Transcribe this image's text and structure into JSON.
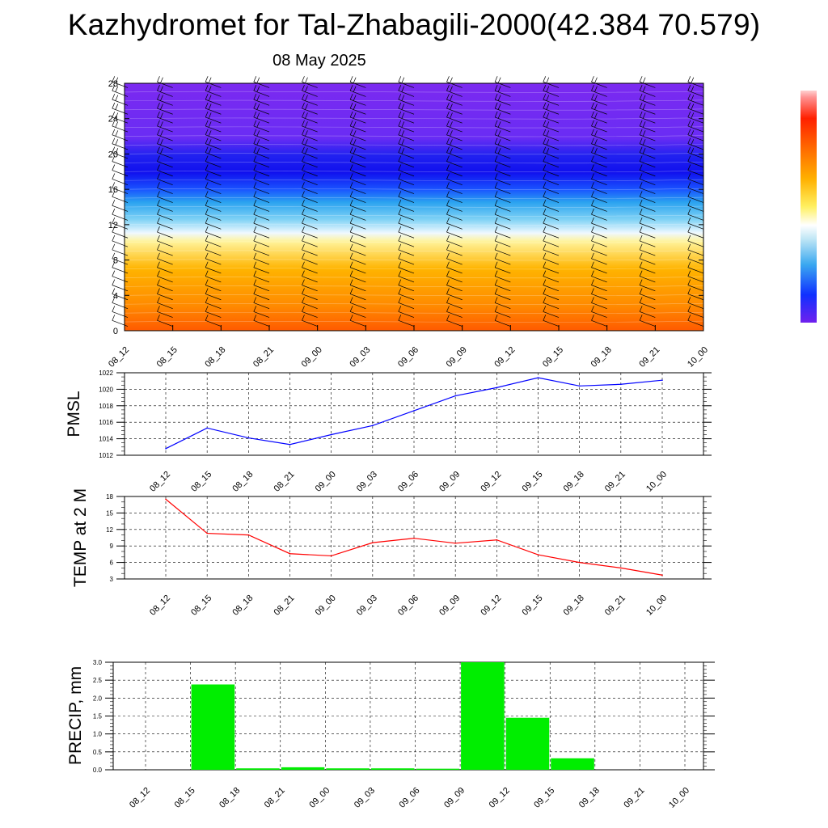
{
  "title": "Kazhydromet for Tal-Zhabagili-2000(42.384 70.579)",
  "subtitle": "08 May 2025",
  "colors": {
    "pmsl_line": "#0000ff",
    "temp_line": "#ff0000",
    "precip_bar": "#00ee00",
    "barb": "#000000"
  },
  "chart_data": [
    {
      "type": "heatmap",
      "title": "Kazhydromet for Tal-Zhabagili-2000(42.384 70.579)",
      "x_ticks": [
        "08_12",
        "08_15",
        "08_18",
        "08_21",
        "09_00",
        "09_03",
        "09_06",
        "09_09",
        "09_12",
        "09_15",
        "09_18",
        "09_21",
        "10_00"
      ],
      "y_ticks": [
        "0",
        "4",
        "8",
        "12",
        "16",
        "20",
        "24",
        "28"
      ],
      "ylim": [
        0,
        28
      ],
      "colorbar": "violet-blue-cyan-white-yellow-orange-red",
      "overlay": "wind barbs"
    },
    {
      "type": "line",
      "ylabel": "PMSL",
      "x": [
        "08_12",
        "08_15",
        "08_18",
        "08_21",
        "09_00",
        "09_03",
        "09_06",
        "09_09",
        "09_12",
        "09_15",
        "09_18",
        "09_21",
        "10_00"
      ],
      "values": [
        1012.8,
        1015.3,
        1014.1,
        1013.3,
        1014.5,
        1015.6,
        1017.4,
        1019.2,
        1020.2,
        1021.4,
        1020.4,
        1020.6,
        1021.1
      ],
      "ylim": [
        1012,
        1022
      ],
      "y_ticks": [
        "1012",
        "1014",
        "1016",
        "1018",
        "1020",
        "1022"
      ],
      "grid": true
    },
    {
      "type": "line",
      "ylabel": "TEMP at 2 M",
      "x": [
        "08_12",
        "08_15",
        "08_18",
        "08_21",
        "09_00",
        "09_03",
        "09_06",
        "09_09",
        "09_12",
        "09_15",
        "09_18",
        "09_21",
        "10_00"
      ],
      "values": [
        17.5,
        11.3,
        11.0,
        7.6,
        7.2,
        9.6,
        10.4,
        9.5,
        10.1,
        7.4,
        6.0,
        5.0,
        3.7
      ],
      "ylim": [
        3,
        18
      ],
      "y_ticks": [
        "3",
        "6",
        "9",
        "12",
        "15",
        "18"
      ],
      "grid": true
    },
    {
      "type": "bar",
      "ylabel": "PRECIP, mm",
      "categories": [
        "08_12",
        "08_15",
        "08_18",
        "08_21",
        "09_00",
        "09_03",
        "09_06",
        "09_09",
        "09_12",
        "09_15",
        "09_18",
        "09_21",
        "10_00"
      ],
      "values": [
        0,
        2.38,
        0.04,
        0.07,
        0.04,
        0.04,
        0.03,
        3.0,
        1.45,
        0.32,
        0,
        0,
        0
      ],
      "ylim": [
        0,
        3.0
      ],
      "y_ticks": [
        "0.0",
        "0.5",
        "1.0",
        "1.5",
        "2.0",
        "2.5",
        "3.0"
      ],
      "grid": true
    }
  ]
}
